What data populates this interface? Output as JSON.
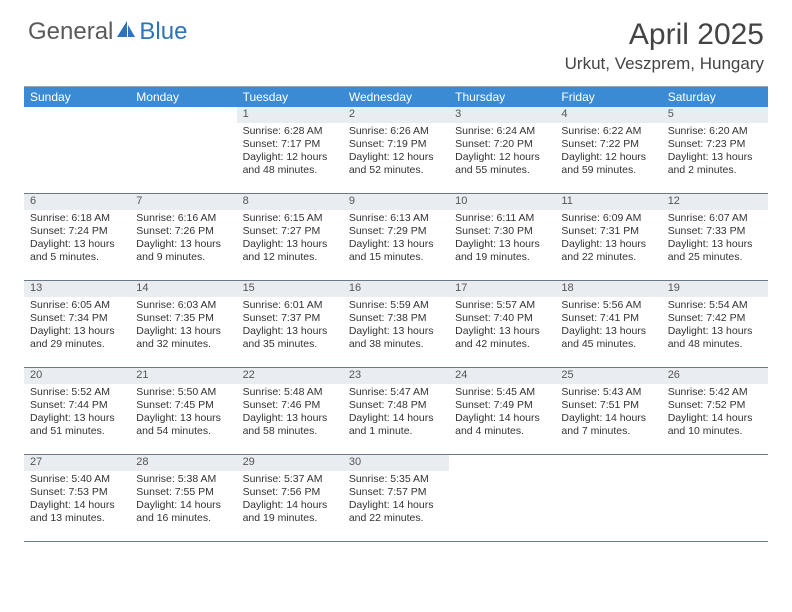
{
  "logo": {
    "text1": "General",
    "text2": "Blue",
    "color1": "#6a6a6a",
    "color2": "#2f72b6"
  },
  "title": "April 2025",
  "location": "Urkut, Veszprem, Hungary",
  "header_bg": "#3b8bd4",
  "daynum_bg": "#e9edf1",
  "border_color": "#6a7a85",
  "day_names": [
    "Sunday",
    "Monday",
    "Tuesday",
    "Wednesday",
    "Thursday",
    "Friday",
    "Saturday"
  ],
  "weeks": [
    [
      {
        "n": "",
        "lines": []
      },
      {
        "n": "",
        "lines": []
      },
      {
        "n": "1",
        "lines": [
          "Sunrise: 6:28 AM",
          "Sunset: 7:17 PM",
          "Daylight: 12 hours and 48 minutes."
        ]
      },
      {
        "n": "2",
        "lines": [
          "Sunrise: 6:26 AM",
          "Sunset: 7:19 PM",
          "Daylight: 12 hours and 52 minutes."
        ]
      },
      {
        "n": "3",
        "lines": [
          "Sunrise: 6:24 AM",
          "Sunset: 7:20 PM",
          "Daylight: 12 hours and 55 minutes."
        ]
      },
      {
        "n": "4",
        "lines": [
          "Sunrise: 6:22 AM",
          "Sunset: 7:22 PM",
          "Daylight: 12 hours and 59 minutes."
        ]
      },
      {
        "n": "5",
        "lines": [
          "Sunrise: 6:20 AM",
          "Sunset: 7:23 PM",
          "Daylight: 13 hours and 2 minutes."
        ]
      }
    ],
    [
      {
        "n": "6",
        "lines": [
          "Sunrise: 6:18 AM",
          "Sunset: 7:24 PM",
          "Daylight: 13 hours and 5 minutes."
        ]
      },
      {
        "n": "7",
        "lines": [
          "Sunrise: 6:16 AM",
          "Sunset: 7:26 PM",
          "Daylight: 13 hours and 9 minutes."
        ]
      },
      {
        "n": "8",
        "lines": [
          "Sunrise: 6:15 AM",
          "Sunset: 7:27 PM",
          "Daylight: 13 hours and 12 minutes."
        ]
      },
      {
        "n": "9",
        "lines": [
          "Sunrise: 6:13 AM",
          "Sunset: 7:29 PM",
          "Daylight: 13 hours and 15 minutes."
        ]
      },
      {
        "n": "10",
        "lines": [
          "Sunrise: 6:11 AM",
          "Sunset: 7:30 PM",
          "Daylight: 13 hours and 19 minutes."
        ]
      },
      {
        "n": "11",
        "lines": [
          "Sunrise: 6:09 AM",
          "Sunset: 7:31 PM",
          "Daylight: 13 hours and 22 minutes."
        ]
      },
      {
        "n": "12",
        "lines": [
          "Sunrise: 6:07 AM",
          "Sunset: 7:33 PM",
          "Daylight: 13 hours and 25 minutes."
        ]
      }
    ],
    [
      {
        "n": "13",
        "lines": [
          "Sunrise: 6:05 AM",
          "Sunset: 7:34 PM",
          "Daylight: 13 hours and 29 minutes."
        ]
      },
      {
        "n": "14",
        "lines": [
          "Sunrise: 6:03 AM",
          "Sunset: 7:35 PM",
          "Daylight: 13 hours and 32 minutes."
        ]
      },
      {
        "n": "15",
        "lines": [
          "Sunrise: 6:01 AM",
          "Sunset: 7:37 PM",
          "Daylight: 13 hours and 35 minutes."
        ]
      },
      {
        "n": "16",
        "lines": [
          "Sunrise: 5:59 AM",
          "Sunset: 7:38 PM",
          "Daylight: 13 hours and 38 minutes."
        ]
      },
      {
        "n": "17",
        "lines": [
          "Sunrise: 5:57 AM",
          "Sunset: 7:40 PM",
          "Daylight: 13 hours and 42 minutes."
        ]
      },
      {
        "n": "18",
        "lines": [
          "Sunrise: 5:56 AM",
          "Sunset: 7:41 PM",
          "Daylight: 13 hours and 45 minutes."
        ]
      },
      {
        "n": "19",
        "lines": [
          "Sunrise: 5:54 AM",
          "Sunset: 7:42 PM",
          "Daylight: 13 hours and 48 minutes."
        ]
      }
    ],
    [
      {
        "n": "20",
        "lines": [
          "Sunrise: 5:52 AM",
          "Sunset: 7:44 PM",
          "Daylight: 13 hours and 51 minutes."
        ]
      },
      {
        "n": "21",
        "lines": [
          "Sunrise: 5:50 AM",
          "Sunset: 7:45 PM",
          "Daylight: 13 hours and 54 minutes."
        ]
      },
      {
        "n": "22",
        "lines": [
          "Sunrise: 5:48 AM",
          "Sunset: 7:46 PM",
          "Daylight: 13 hours and 58 minutes."
        ]
      },
      {
        "n": "23",
        "lines": [
          "Sunrise: 5:47 AM",
          "Sunset: 7:48 PM",
          "Daylight: 14 hours and 1 minute."
        ]
      },
      {
        "n": "24",
        "lines": [
          "Sunrise: 5:45 AM",
          "Sunset: 7:49 PM",
          "Daylight: 14 hours and 4 minutes."
        ]
      },
      {
        "n": "25",
        "lines": [
          "Sunrise: 5:43 AM",
          "Sunset: 7:51 PM",
          "Daylight: 14 hours and 7 minutes."
        ]
      },
      {
        "n": "26",
        "lines": [
          "Sunrise: 5:42 AM",
          "Sunset: 7:52 PM",
          "Daylight: 14 hours and 10 minutes."
        ]
      }
    ],
    [
      {
        "n": "27",
        "lines": [
          "Sunrise: 5:40 AM",
          "Sunset: 7:53 PM",
          "Daylight: 14 hours and 13 minutes."
        ]
      },
      {
        "n": "28",
        "lines": [
          "Sunrise: 5:38 AM",
          "Sunset: 7:55 PM",
          "Daylight: 14 hours and 16 minutes."
        ]
      },
      {
        "n": "29",
        "lines": [
          "Sunrise: 5:37 AM",
          "Sunset: 7:56 PM",
          "Daylight: 14 hours and 19 minutes."
        ]
      },
      {
        "n": "30",
        "lines": [
          "Sunrise: 5:35 AM",
          "Sunset: 7:57 PM",
          "Daylight: 14 hours and 22 minutes."
        ]
      },
      {
        "n": "",
        "lines": []
      },
      {
        "n": "",
        "lines": []
      },
      {
        "n": "",
        "lines": []
      }
    ]
  ]
}
